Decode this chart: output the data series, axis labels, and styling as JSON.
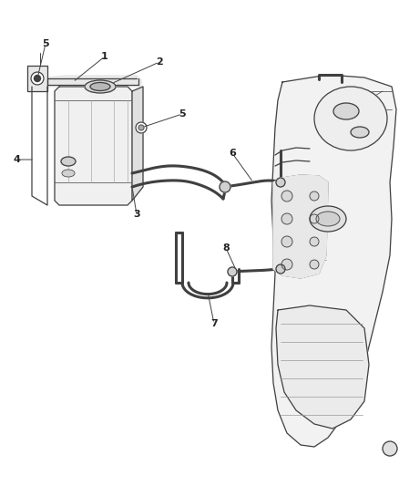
{
  "background_color": "#ffffff",
  "line_color": "#404040",
  "label_color": "#222222",
  "fig_width": 4.38,
  "fig_height": 5.33,
  "dpi": 100,
  "lw_main": 0.9,
  "lw_hose": 2.2,
  "lw_thin": 0.5
}
